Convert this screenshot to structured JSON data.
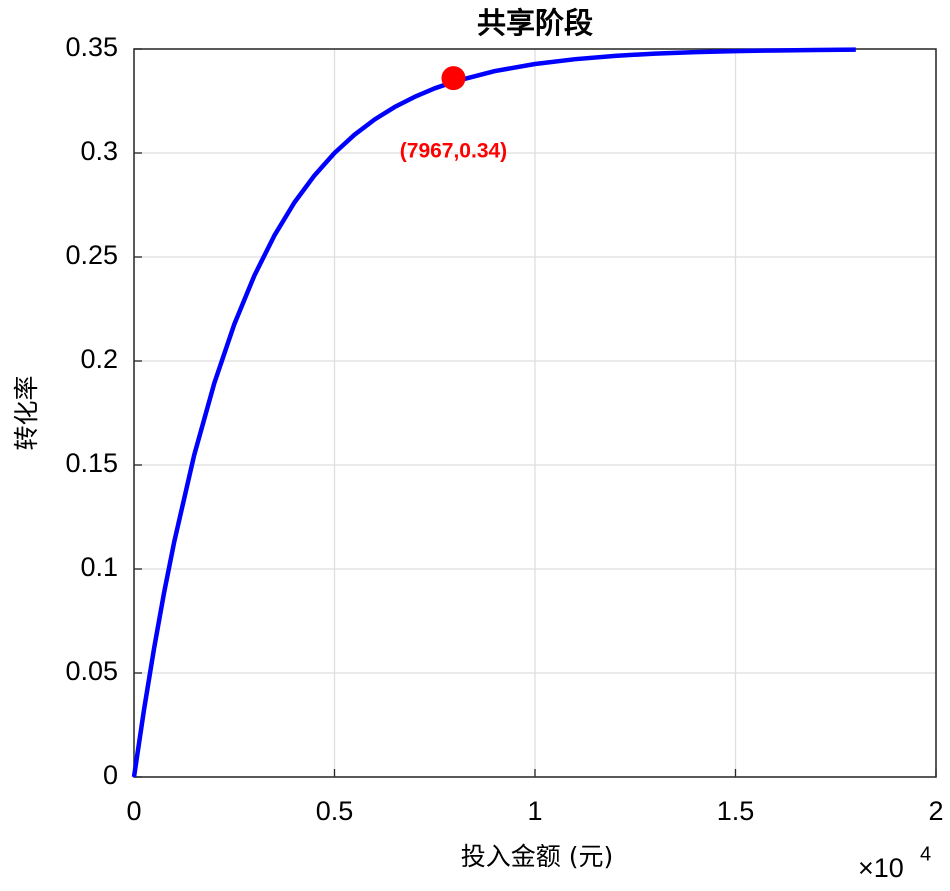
{
  "chart_data": {
    "type": "line",
    "title": "共享阶段",
    "x_label": "投入金额 (元)",
    "y_label": "转化率",
    "x_exponent_base": "×10",
    "x_exponent": "4",
    "xlim": [
      0,
      20000
    ],
    "ylim": [
      0,
      0.35
    ],
    "xticks": [
      0,
      {
        "value": 5000,
        "label": "0.5"
      },
      {
        "value": 10000,
        "label": "1"
      },
      {
        "value": 15000,
        "label": "1.5"
      },
      {
        "value": 20000,
        "label": "2"
      }
    ],
    "yticks": [
      0,
      0.05,
      0.1,
      0.15,
      0.2,
      0.25,
      0.3,
      0.35
    ],
    "grid": true,
    "series": [
      {
        "type": "line",
        "color": "#0000ff",
        "x": [
          0,
          250,
          500,
          750,
          1000,
          1500,
          2000,
          2500,
          3000,
          3500,
          4000,
          4500,
          5000,
          5500,
          6000,
          6500,
          7000,
          7500,
          8000,
          9000,
          10000,
          11000,
          12000,
          13000,
          14000,
          15000,
          16000,
          17000,
          18000
        ],
        "values": [
          0,
          0.0324,
          0.0618,
          0.0886,
          0.1128,
          0.1547,
          0.1892,
          0.2176,
          0.241,
          0.2603,
          0.2762,
          0.2892,
          0.3,
          0.3088,
          0.3161,
          0.3221,
          0.327,
          0.3311,
          0.3344,
          0.3394,
          0.3428,
          0.3451,
          0.3467,
          0.3478,
          0.3485,
          0.349,
          0.3493,
          0.3495,
          0.3497
        ]
      },
      {
        "type": "scatter",
        "color": "#ff0000",
        "x": [
          7967
        ],
        "values": [
          0.336
        ],
        "value_labels": [
          "(7967,0.34)"
        ]
      }
    ]
  }
}
